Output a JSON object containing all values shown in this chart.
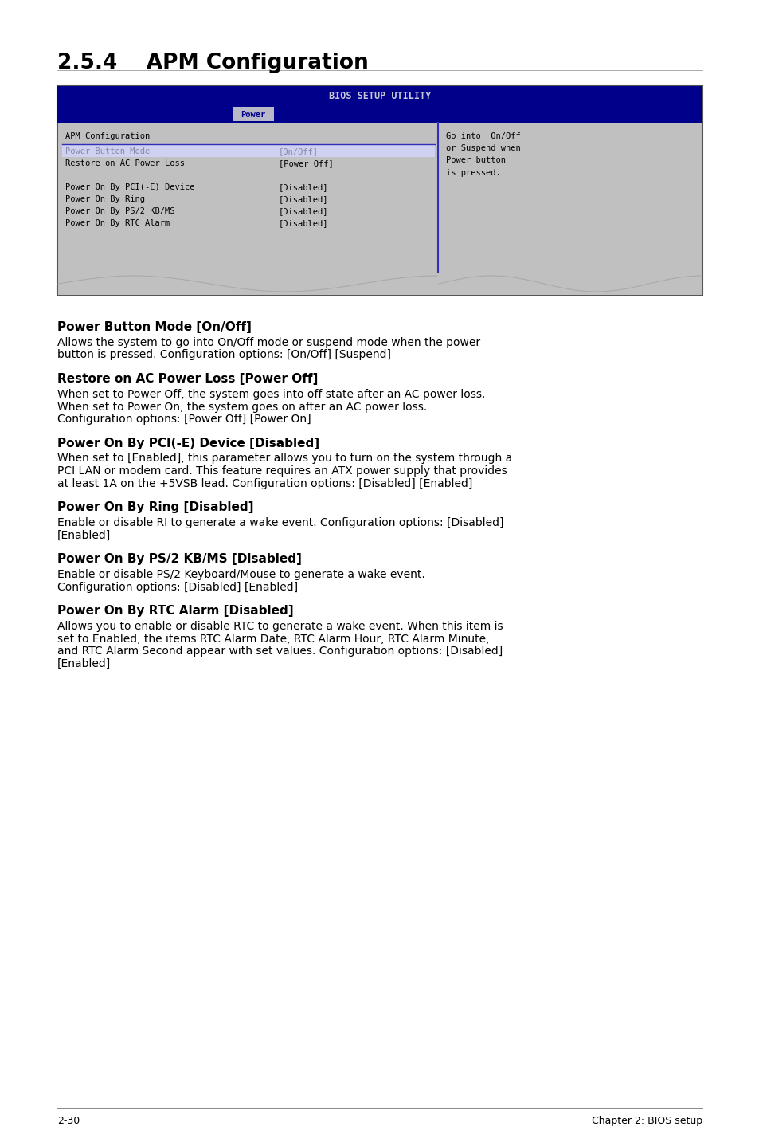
{
  "page_bg": "#ffffff",
  "section_title": "2.5.4    APM Configuration",
  "bios_header_text": "BIOS SETUP UTILITY",
  "bios_header_bg": "#00008b",
  "bios_header_text_color": "#c8c8d8",
  "tab_text": "Power",
  "tab_bg": "#b8b8c8",
  "tab_text_color": "#00008b",
  "bios_body_bg": "#c0c0c0",
  "bios_left_label": "APM Configuration",
  "bios_items_left": [
    "Power Button Mode",
    "Restore on AC Power Loss",
    "",
    "Power On By PCI(-E) Device",
    "Power On By Ring",
    "Power On By PS/2 KB/MS",
    "Power On By RTC Alarm"
  ],
  "bios_items_right": [
    "[On/Off]",
    "[Power Off]",
    "",
    "[Disabled]",
    "[Disabled]",
    "[Disabled]",
    "[Disabled]"
  ],
  "bios_right_panel_text": "Go into  On/Off\nor Suspend when\nPower button\nis pressed.",
  "bios_divider_color": "#3030bb",
  "bios_highlight_color": "#d0d0f0",
  "bios_highlight_text_color": "#8888aa",
  "sections": [
    {
      "heading": "Power Button Mode [On/Off]",
      "body": "Allows the system to go into On/Off mode or suspend mode when the power\nbutton is pressed. Configuration options: [On/Off] [Suspend]"
    },
    {
      "heading": "Restore on AC Power Loss [Power Off]",
      "body": "When set to Power Off, the system goes into off state after an AC power loss.\nWhen set to Power On, the system goes on after an AC power loss.\nConfiguration options: [Power Off] [Power On]"
    },
    {
      "heading": "Power On By PCI(-E) Device [Disabled]",
      "body": "When set to [Enabled], this parameter allows you to turn on the system through a\nPCI LAN or modem card. This feature requires an ATX power supply that provides\nat least 1A on the +5VSB lead. Configuration options: [Disabled] [Enabled]"
    },
    {
      "heading": "Power On By Ring [Disabled]",
      "body": "Enable or disable RI to generate a wake event. Configuration options: [Disabled]\n[Enabled]"
    },
    {
      "heading": "Power On By PS/2 KB/MS [Disabled]",
      "body": "Enable or disable PS/2 Keyboard/Mouse to generate a wake event.\nConfiguration options: [Disabled] [Enabled]"
    },
    {
      "heading": "Power On By RTC Alarm [Disabled]",
      "body": "Allows you to enable or disable RTC to generate a wake event. When this item is\nset to Enabled, the items RTC Alarm Date, RTC Alarm Hour, RTC Alarm Minute,\nand RTC Alarm Second appear with set values. Configuration options: [Disabled]\n[Enabled]"
    }
  ],
  "footer_left": "2-30",
  "footer_right": "Chapter 2: BIOS setup"
}
